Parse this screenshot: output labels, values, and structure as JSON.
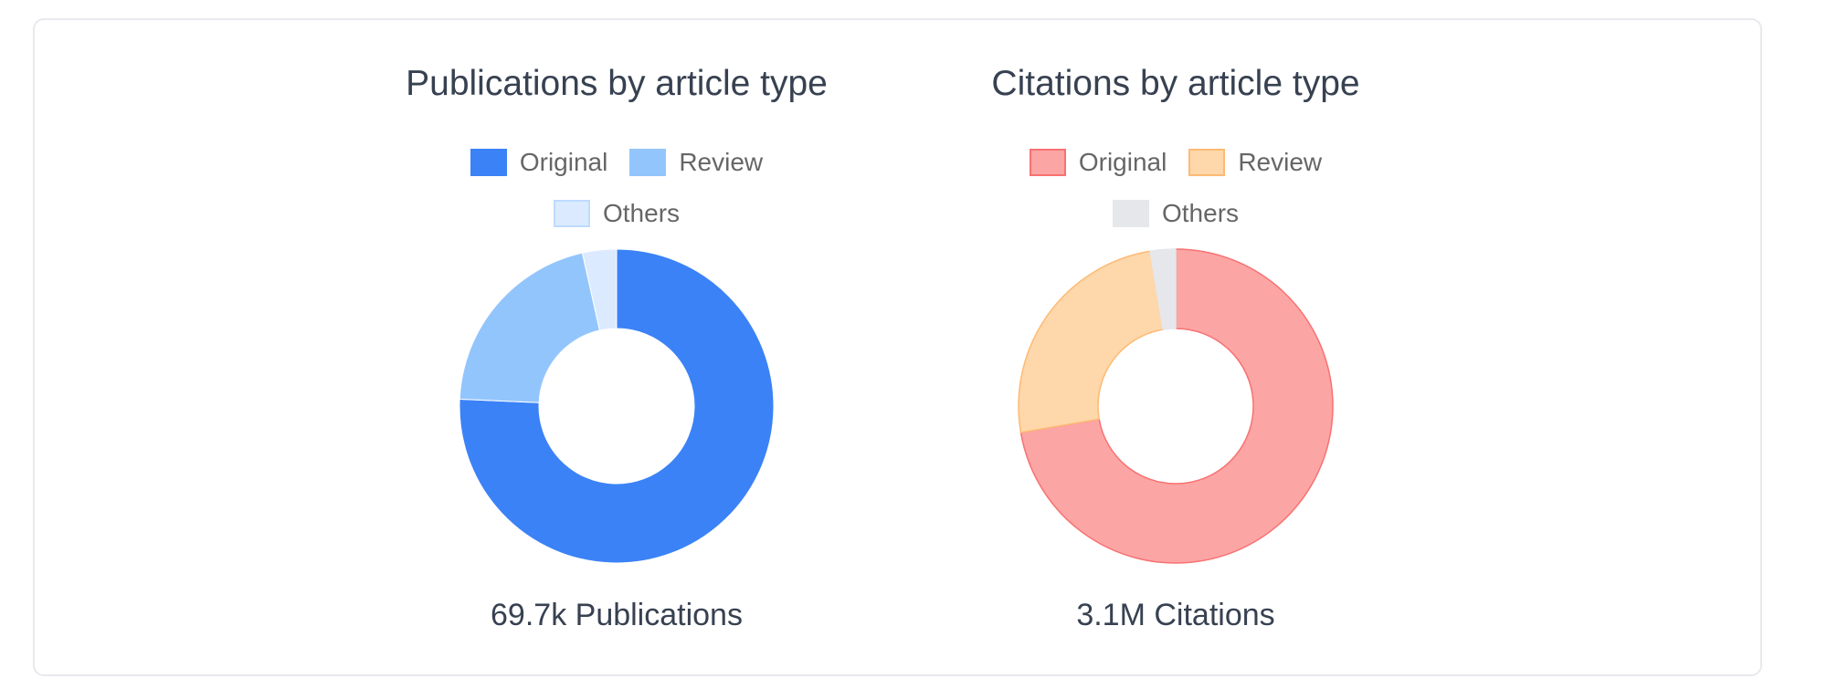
{
  "charts": [
    {
      "title": "Publications by article type",
      "total_label": "69.7k Publications",
      "legend": [
        {
          "label": "Original",
          "fill": "#3b82f6",
          "border": "#3b82f6"
        },
        {
          "label": "Review",
          "fill": "#93c5fd",
          "border": "#93c5fd"
        },
        {
          "label": "Others",
          "fill": "#dbeafe",
          "border": "#bfdbfe"
        }
      ]
    },
    {
      "title": "Citations by article type",
      "total_label": "3.1M Citations",
      "legend": [
        {
          "label": "Original",
          "fill": "#fca5a5",
          "border": "#f87171"
        },
        {
          "label": "Review",
          "fill": "#fed7aa",
          "border": "#fdba74"
        },
        {
          "label": "Others",
          "fill": "#e5e7eb",
          "border": "#e5e7eb"
        }
      ]
    }
  ],
  "chart_data": [
    {
      "type": "pie",
      "subtype": "doughnut",
      "title": "Publications by article type",
      "total": "69.7k Publications",
      "categories": [
        "Original",
        "Review",
        "Others"
      ],
      "values_percent": [
        75.7,
        20.8,
        3.5
      ],
      "colors": [
        "#3b82f6",
        "#93c5fd",
        "#dbeafe"
      ],
      "start_angle_deg": 0,
      "direction": "clockwise",
      "legend_position": "top"
    },
    {
      "type": "pie",
      "subtype": "doughnut",
      "title": "Citations by article type",
      "total": "3.1M Citations",
      "categories": [
        "Original",
        "Review",
        "Others"
      ],
      "values_percent": [
        72.3,
        25.1,
        2.6
      ],
      "colors": [
        "#fca5a5",
        "#fed7aa",
        "#e5e7eb"
      ],
      "borders": [
        "#f87171",
        "#fdba74",
        "#e5e7eb"
      ],
      "start_angle_deg": 0,
      "direction": "clockwise",
      "legend_position": "top"
    }
  ]
}
